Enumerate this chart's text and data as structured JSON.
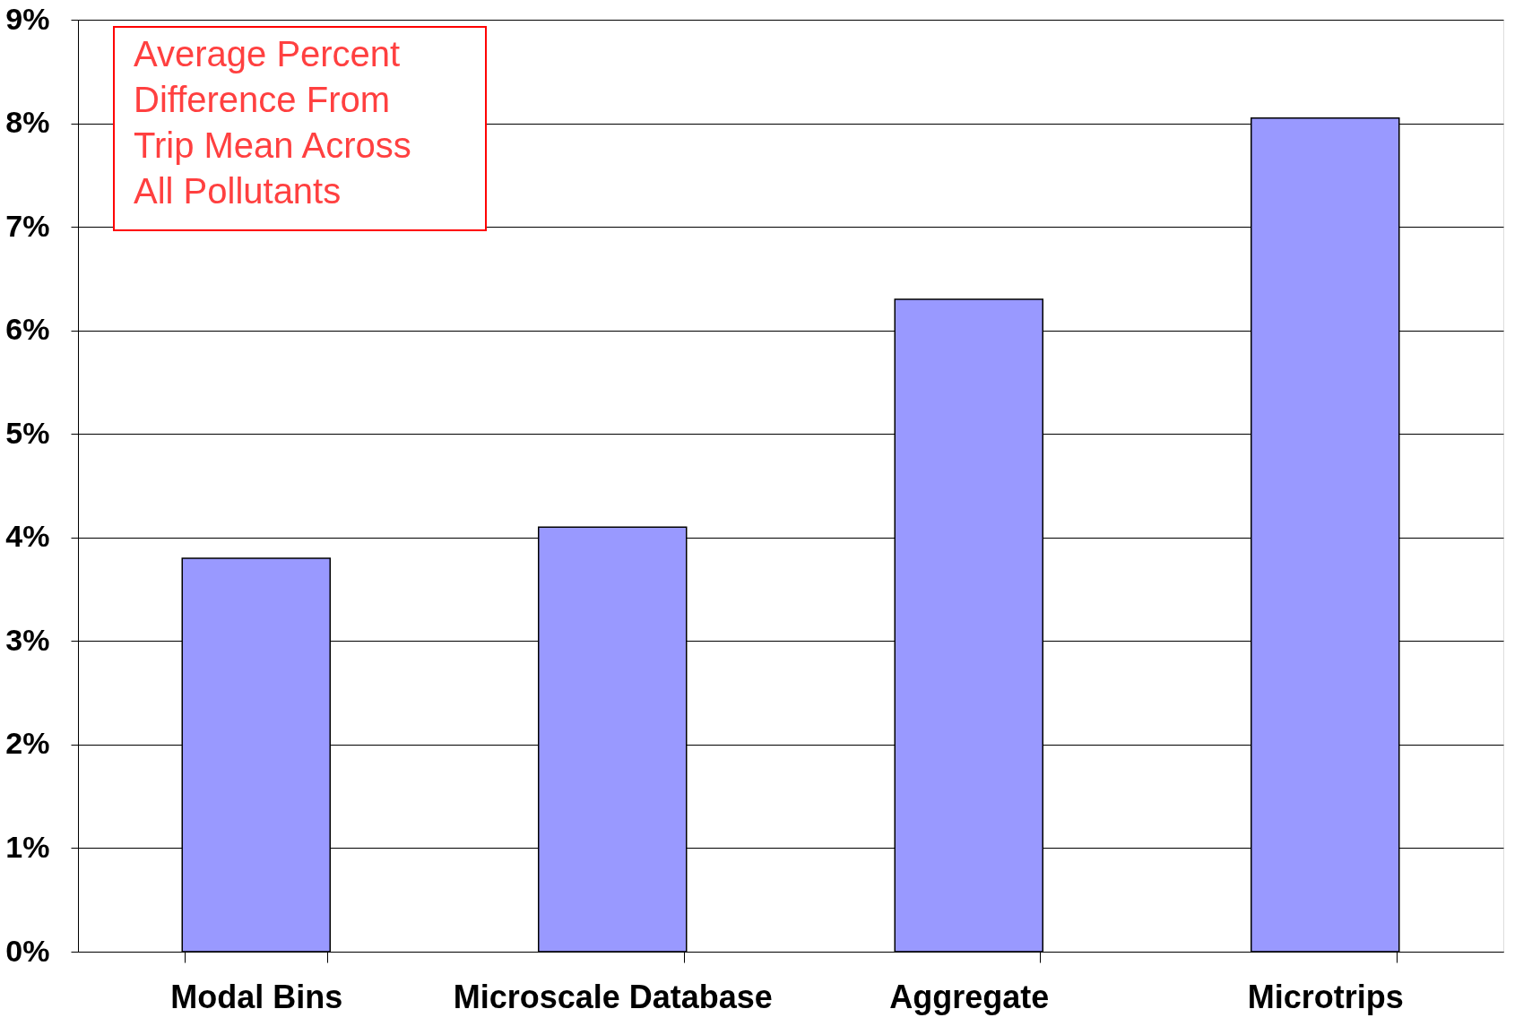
{
  "chart_data": {
    "type": "bar",
    "title": "Average Percent Difference From Trip Mean Across All Pollutants",
    "categories": [
      "Modal Bins",
      "Microscale Database",
      "Aggregate",
      "Microtrips"
    ],
    "values": [
      3.8,
      4.1,
      6.3,
      8.05
    ],
    "color": "#9999ff",
    "ylim": [
      0,
      9
    ],
    "yticks": [
      {
        "value": 0,
        "label": "0%"
      },
      {
        "value": 1,
        "label": "1%"
      },
      {
        "value": 2,
        "label": "2%"
      },
      {
        "value": 3,
        "label": "3%"
      },
      {
        "value": 4,
        "label": "4%"
      },
      {
        "value": 5,
        "label": "5%"
      },
      {
        "value": 6,
        "label": "6%"
      },
      {
        "value": 7,
        "label": "7%"
      },
      {
        "value": 8,
        "label": "8%"
      },
      {
        "value": 9,
        "label": "9%"
      }
    ],
    "grid": "y"
  }
}
